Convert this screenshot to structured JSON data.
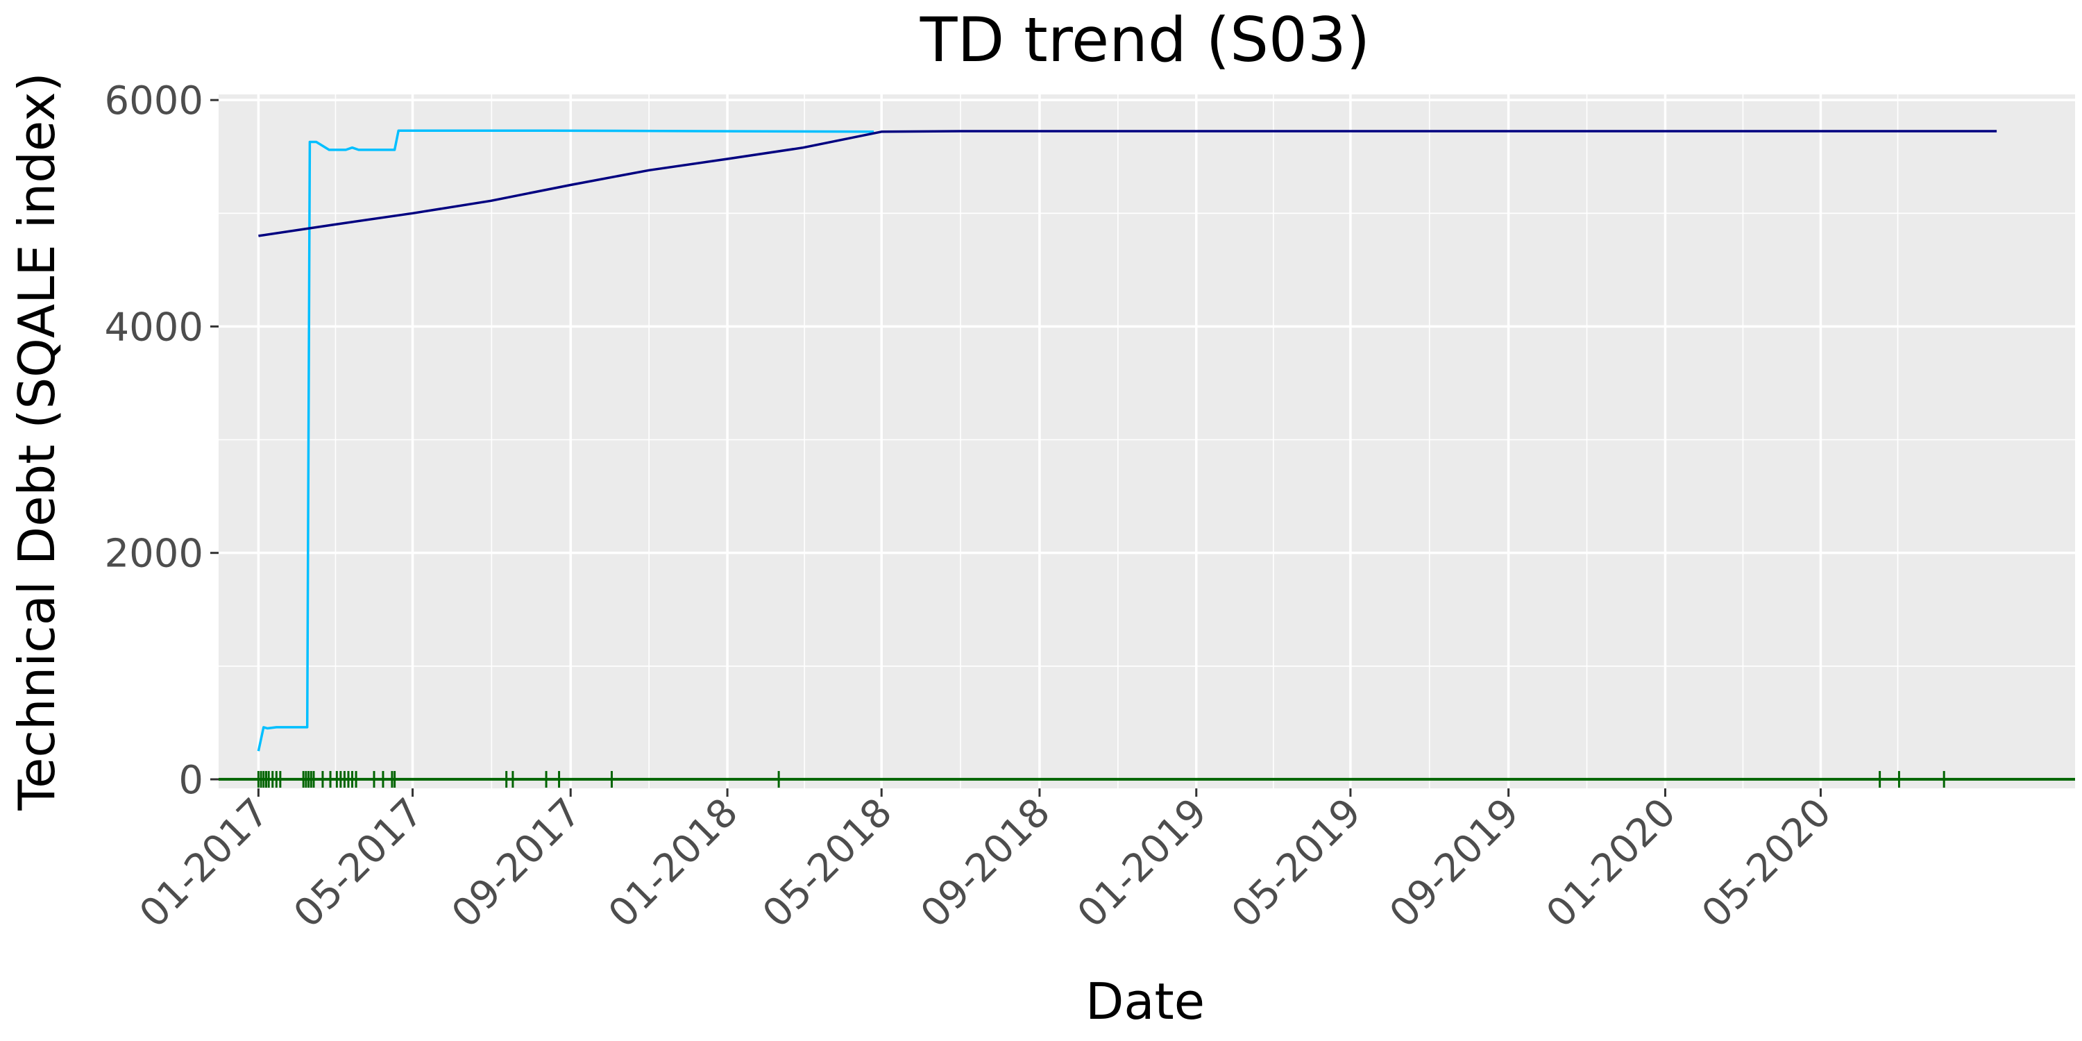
{
  "chart_data": {
    "type": "line",
    "title": "TD trend (S03)",
    "xlabel": "Date",
    "ylabel": "Technical Debt (SQALE index)",
    "x_axis_type": "date",
    "xlim": [
      "2016-12-01",
      "2020-11-15"
    ],
    "ylim": [
      -80,
      6050
    ],
    "x_ticks": [
      {
        "date": "2017-01-01",
        "label": "01-2017"
      },
      {
        "date": "2017-05-01",
        "label": "05-2017"
      },
      {
        "date": "2017-09-01",
        "label": "09-2017"
      },
      {
        "date": "2018-01-01",
        "label": "01-2018"
      },
      {
        "date": "2018-05-01",
        "label": "05-2018"
      },
      {
        "date": "2018-09-01",
        "label": "09-2018"
      },
      {
        "date": "2019-01-01",
        "label": "01-2019"
      },
      {
        "date": "2019-05-01",
        "label": "05-2019"
      },
      {
        "date": "2019-09-01",
        "label": "09-2019"
      },
      {
        "date": "2020-01-01",
        "label": "01-2020"
      },
      {
        "date": "2020-05-01",
        "label": "05-2020"
      }
    ],
    "y_ticks": [
      0,
      2000,
      4000,
      6000
    ],
    "grid": true,
    "background": "#ebebeb",
    "series": [
      {
        "color": "#00bfff",
        "points": [
          [
            "2017-01-01",
            250
          ],
          [
            "2017-01-05",
            460
          ],
          [
            "2017-01-08",
            450
          ],
          [
            "2017-01-15",
            460
          ],
          [
            "2017-02-05",
            460
          ],
          [
            "2017-02-08",
            460
          ],
          [
            "2017-02-10",
            5630
          ],
          [
            "2017-02-15",
            5630
          ],
          [
            "2017-02-25",
            5560
          ],
          [
            "2017-03-10",
            5560
          ],
          [
            "2017-03-15",
            5580
          ],
          [
            "2017-03-20",
            5560
          ],
          [
            "2017-04-15",
            5560
          ],
          [
            "2017-04-17",
            5560
          ],
          [
            "2017-04-20",
            5730
          ],
          [
            "2017-08-15",
            5730
          ],
          [
            "2018-04-25",
            5720
          ]
        ]
      },
      {
        "color": "#000080",
        "points": [
          [
            "2017-01-01",
            4800
          ],
          [
            "2017-03-01",
            4900
          ],
          [
            "2017-05-01",
            5000
          ],
          [
            "2017-07-01",
            5110
          ],
          [
            "2017-09-01",
            5250
          ],
          [
            "2017-11-01",
            5380
          ],
          [
            "2018-01-01",
            5480
          ],
          [
            "2018-03-01",
            5580
          ],
          [
            "2018-05-01",
            5720
          ],
          [
            "2018-07-01",
            5725
          ],
          [
            "2020-09-15",
            5725
          ]
        ]
      },
      {
        "color": "#006400",
        "points": [
          [
            "2016-12-01",
            0
          ],
          [
            "2020-11-15",
            0
          ]
        ]
      }
    ],
    "rug": {
      "color": "#006400",
      "dates": [
        "2017-01-01",
        "2017-01-03",
        "2017-01-05",
        "2017-01-07",
        "2017-01-09",
        "2017-01-12",
        "2017-01-15",
        "2017-01-18",
        "2017-02-05",
        "2017-02-07",
        "2017-02-09",
        "2017-02-11",
        "2017-02-13",
        "2017-02-20",
        "2017-02-26",
        "2017-03-03",
        "2017-03-06",
        "2017-03-09",
        "2017-03-12",
        "2017-03-15",
        "2017-03-18",
        "2017-04-01",
        "2017-04-08",
        "2017-04-15",
        "2017-04-17",
        "2017-07-13",
        "2017-07-18",
        "2017-08-13",
        "2017-08-23",
        "2017-10-03",
        "2018-02-10",
        "2020-06-16",
        "2020-07-01",
        "2020-08-05"
      ]
    }
  }
}
